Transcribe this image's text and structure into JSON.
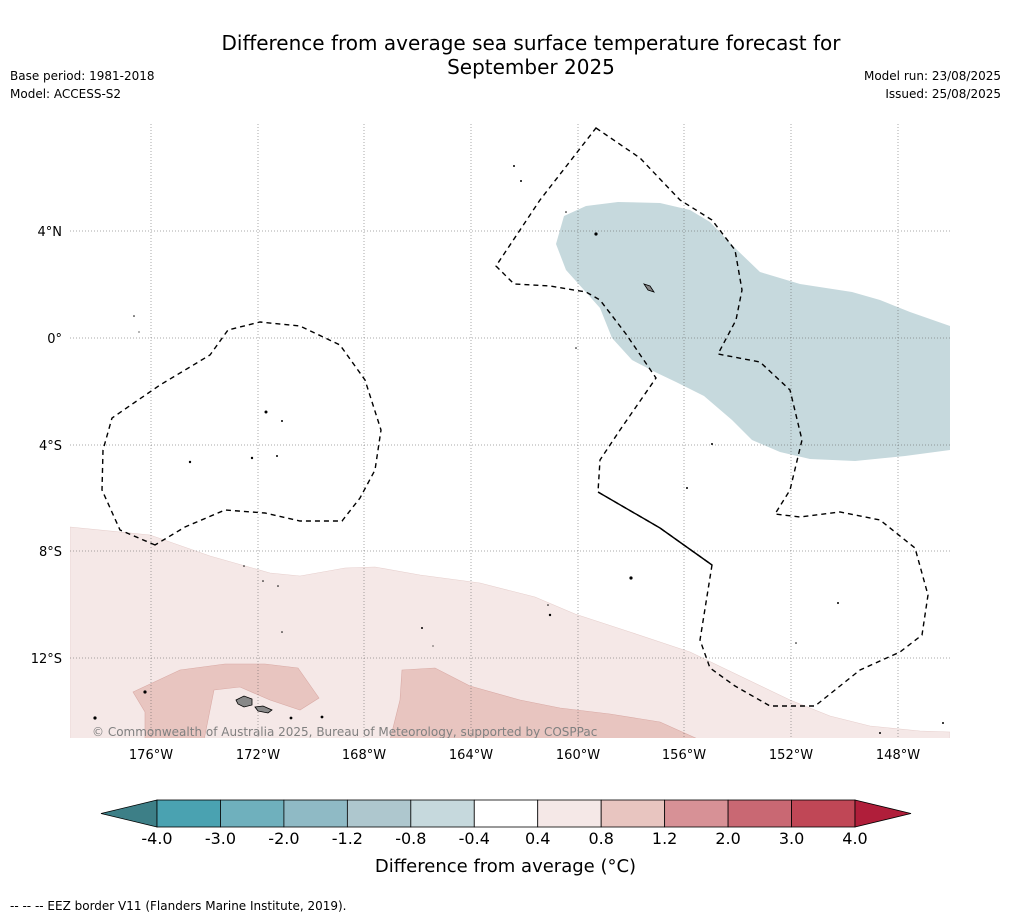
{
  "header": {
    "title_line1": "Difference from average sea surface temperature forecast for",
    "title_line2": "September 2025",
    "base_period": "Base period: 1981-2018",
    "model": "Model: ACCESS-S2",
    "model_run": "Model run: 23/08/2025",
    "issued": "Issued: 25/08/2025"
  },
  "map": {
    "lat_labels": [
      "4°N",
      "0°",
      "4°S",
      "8°S",
      "12°S"
    ],
    "lon_labels": [
      "176°W",
      "172°W",
      "168°W",
      "164°W",
      "160°W",
      "156°W",
      "152°W",
      "148°W"
    ],
    "copyright": "© Commonwealth of Australia 2025, Bureau of Meteorology, supported by COSPPac",
    "colors": {
      "cool_anomaly": "#c6d9dd",
      "warm_light": "#f5e8e7",
      "warm_medium": "#e8c5c0"
    }
  },
  "colorbar": {
    "ticks": [
      "-4.0",
      "-3.0",
      "-2.0",
      "-1.2",
      "-0.8",
      "-0.4",
      "0.4",
      "0.8",
      "1.2",
      "2.0",
      "3.0",
      "4.0"
    ],
    "colors": [
      "#3d7f87",
      "#4aa2b1",
      "#6fb0bd",
      "#8fbac5",
      "#aec7ce",
      "#c6d9dd",
      "#ffffff",
      "#f5e8e7",
      "#e8c5c0",
      "#d79196",
      "#c96873",
      "#c04756",
      "#b01e3a"
    ],
    "label": "Difference from average (°C)"
  },
  "footer": {
    "legend_text": "--  --  -- EEZ border V11 (Flanders Marine Institute, 2019)."
  }
}
